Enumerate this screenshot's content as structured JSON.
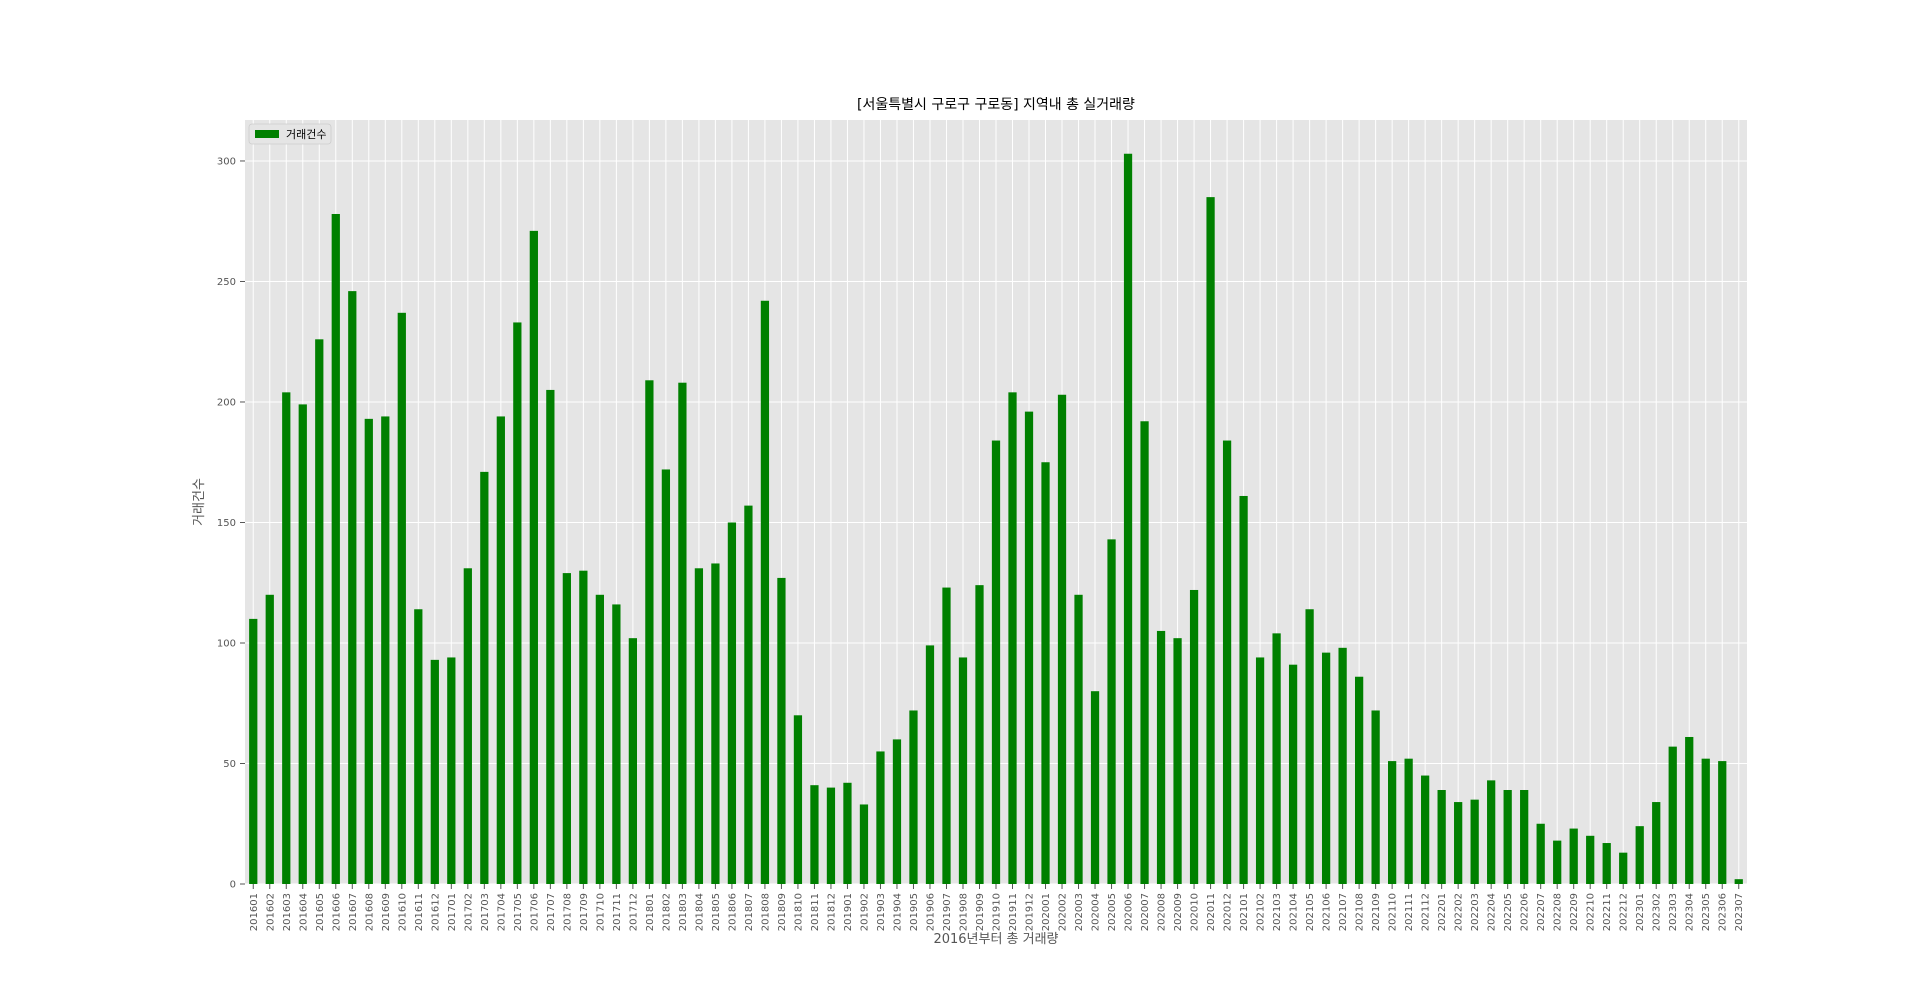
{
  "chart_data": {
    "type": "bar",
    "title": "[서울특별시 구로구 구로동] 지역내 총 실거래량",
    "xlabel": "2016년부터 총 거래량",
    "ylabel": "거래건수",
    "legend": {
      "entries": [
        "거래건수"
      ],
      "placement": "top-left"
    },
    "grid": true,
    "ylim": [
      0,
      317
    ],
    "yticks": [
      0,
      50,
      100,
      150,
      200,
      250,
      300
    ],
    "bar_color": "#008000",
    "plot_background": "#e5e5e5",
    "categories": [
      "201601",
      "201602",
      "201603",
      "201604",
      "201605",
      "201606",
      "201607",
      "201608",
      "201609",
      "201610",
      "201611",
      "201612",
      "201701",
      "201702",
      "201703",
      "201704",
      "201705",
      "201706",
      "201707",
      "201708",
      "201709",
      "201710",
      "201711",
      "201712",
      "201801",
      "201802",
      "201803",
      "201804",
      "201805",
      "201806",
      "201807",
      "201808",
      "201809",
      "201810",
      "201811",
      "201812",
      "201901",
      "201902",
      "201903",
      "201904",
      "201905",
      "201906",
      "201907",
      "201908",
      "201909",
      "201910",
      "201911",
      "201912",
      "202001",
      "202002",
      "202003",
      "202004",
      "202005",
      "202006",
      "202007",
      "202008",
      "202009",
      "202010",
      "202011",
      "202012",
      "202101",
      "202102",
      "202103",
      "202104",
      "202105",
      "202106",
      "202107",
      "202108",
      "202109",
      "202110",
      "202111",
      "202112",
      "202201",
      "202202",
      "202203",
      "202204",
      "202205",
      "202206",
      "202207",
      "202208",
      "202209",
      "202210",
      "202211",
      "202212",
      "202301",
      "202302",
      "202303",
      "202304",
      "202305",
      "202306",
      "202307"
    ],
    "series": [
      {
        "name": "거래건수",
        "values": [
          110,
          120,
          204,
          199,
          226,
          278,
          246,
          193,
          194,
          237,
          114,
          93,
          94,
          131,
          171,
          194,
          233,
          271,
          205,
          129,
          130,
          120,
          116,
          102,
          209,
          172,
          208,
          131,
          133,
          150,
          157,
          242,
          127,
          70,
          41,
          40,
          42,
          33,
          55,
          60,
          72,
          99,
          123,
          94,
          124,
          184,
          204,
          196,
          175,
          203,
          120,
          80,
          143,
          303,
          192,
          105,
          102,
          122,
          285,
          184,
          161,
          94,
          104,
          91,
          114,
          96,
          98,
          86,
          72,
          51,
          52,
          45,
          39,
          34,
          35,
          43,
          39,
          39,
          25,
          18,
          23,
          20,
          17,
          13,
          24,
          34,
          57,
          61,
          52,
          51,
          2
        ]
      }
    ]
  }
}
